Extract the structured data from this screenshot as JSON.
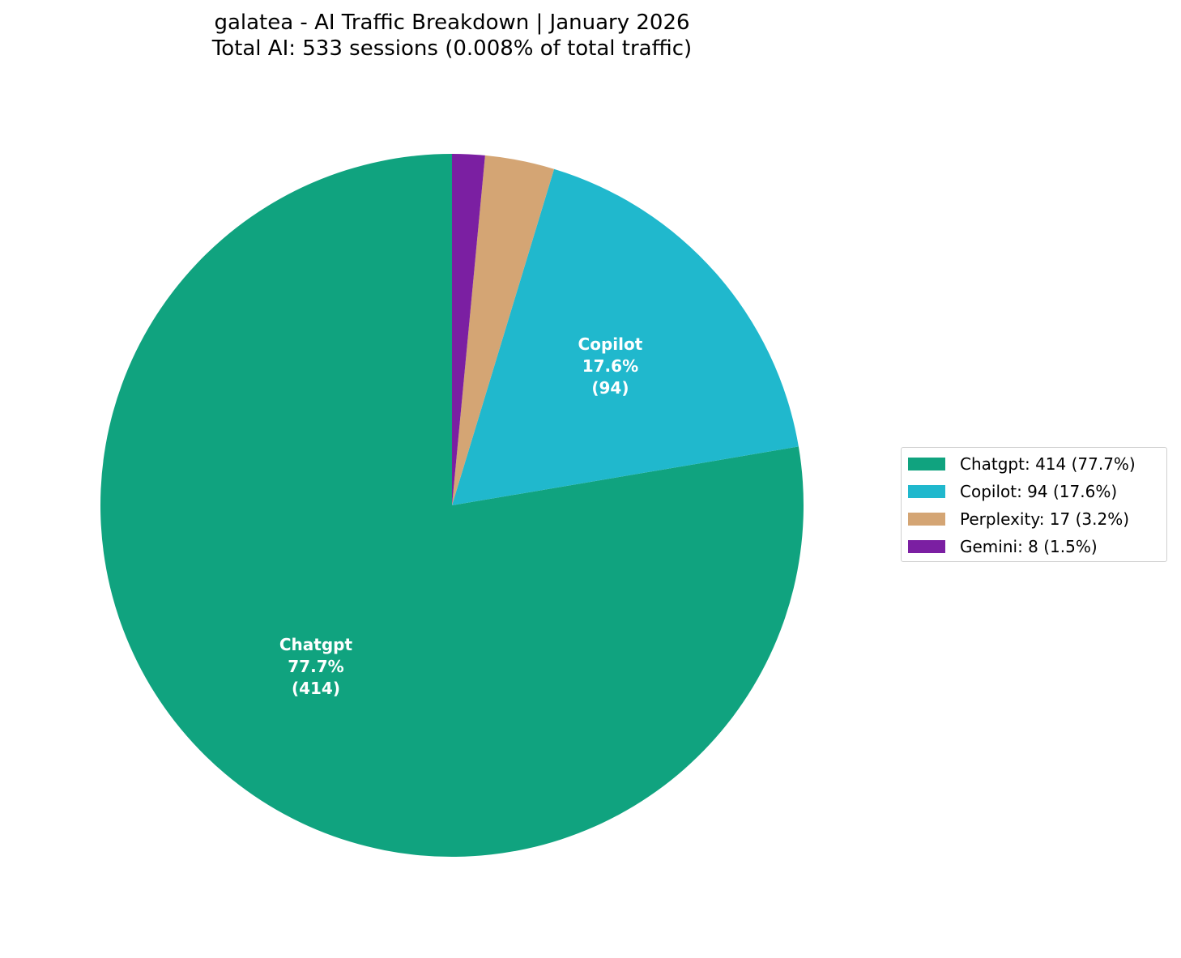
{
  "title": {
    "line1": "galatea - AI Traffic Breakdown | January 2026",
    "line2": "Total AI: 533 sessions (0.008% of total traffic)"
  },
  "chart_data": {
    "type": "pie",
    "title": "galatea - AI Traffic Breakdown | January 2026",
    "subtitle": "Total AI: 533 sessions (0.008% of total traffic)",
    "total": 533,
    "start_angle_deg": 90,
    "direction": "counterclockwise",
    "categories": [
      "Chatgpt",
      "Copilot",
      "Perplexity",
      "Gemini"
    ],
    "values": [
      414,
      94,
      17,
      8
    ],
    "percentages": [
      77.7,
      17.6,
      3.2,
      1.5
    ],
    "colors": [
      "#10a37f",
      "#20b8cd",
      "#d4a574",
      "#7b1fa2"
    ],
    "slice_labels": [
      {
        "name": "Chatgpt",
        "pct": "77.7%",
        "count": "(414)"
      },
      {
        "name": "Copilot",
        "pct": "17.6%",
        "count": "(94)"
      },
      {
        "name": "Perplexity",
        "pct": "",
        "count": ""
      },
      {
        "name": "Gemini",
        "pct": "",
        "count": ""
      }
    ],
    "legend": {
      "position": "right",
      "entries": [
        "Chatgpt: 414 (77.7%)",
        "Copilot: 94 (17.6%)",
        "Perplexity: 17 (3.2%)",
        "Gemini: 8 (1.5%)"
      ]
    }
  }
}
